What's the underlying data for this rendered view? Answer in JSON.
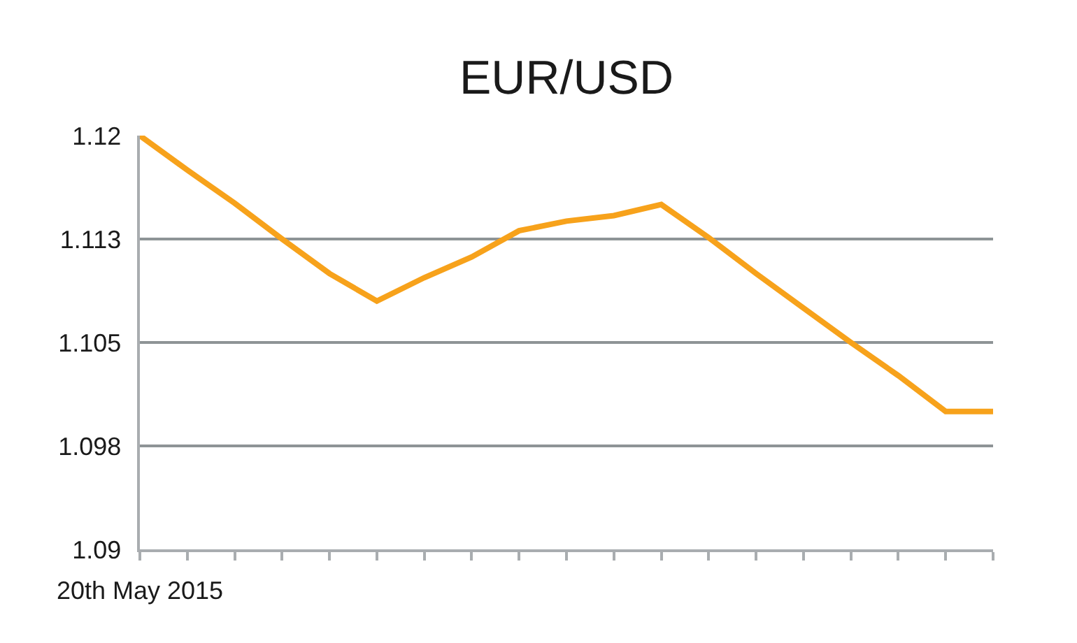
{
  "chart_data": {
    "type": "line",
    "title": "EUR/USD",
    "categories": [
      "20th May 2015",
      null,
      null,
      null,
      null,
      null,
      null,
      null,
      null,
      null,
      null,
      null,
      null,
      null,
      null,
      null,
      null,
      null,
      null
    ],
    "series": [
      {
        "color": "#f7a21b",
        "values": [
          1.12,
          1.1175,
          1.1151,
          1.1125,
          1.11,
          1.108,
          1.1097,
          1.1112,
          1.1131,
          1.1138,
          1.1142,
          1.115,
          1.1126,
          1.11,
          1.1075,
          1.105,
          1.1026,
          1.1,
          1.1
        ]
      }
    ],
    "ylim": [
      1.09,
      1.12
    ],
    "yticks": [
      1.09,
      {
        "value": 1.0975,
        "label": "1.098"
      },
      1.105,
      {
        "value": 1.1125,
        "label": "1.113"
      },
      1.12
    ],
    "grid": "y",
    "marker": "none",
    "line_style": "solid"
  }
}
